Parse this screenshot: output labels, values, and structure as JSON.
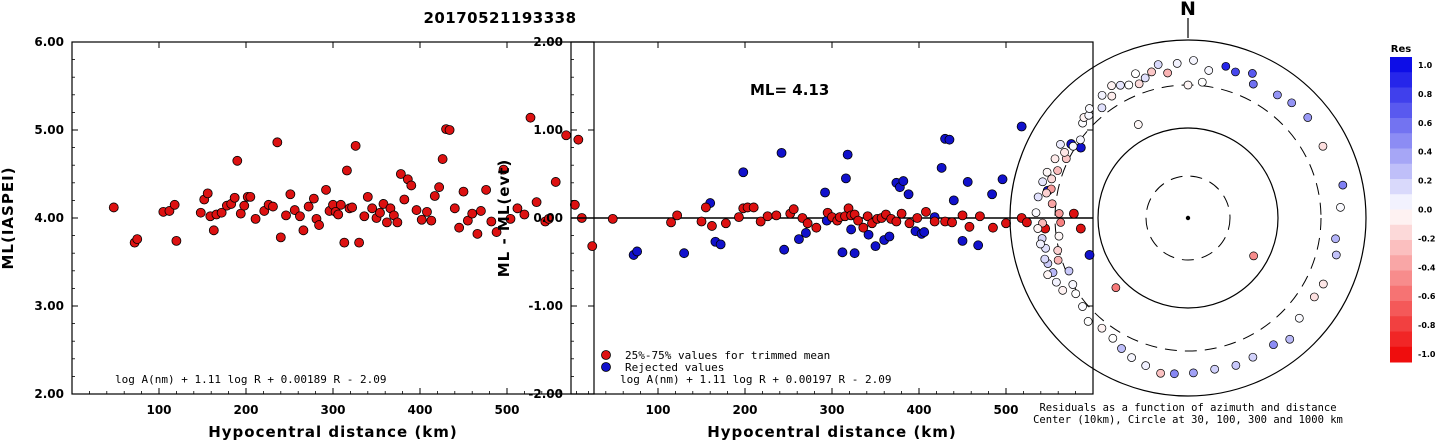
{
  "title": "20170521193338",
  "chart_data": [
    {
      "type": "scatter",
      "xlabel": "Hypocentral distance (km)",
      "ylabel": "ML(IASPEI)",
      "xlim": [
        0,
        600
      ],
      "ylim": [
        2.0,
        6.0
      ],
      "xticks": [
        100,
        200,
        300,
        400,
        500
      ],
      "yticks": [
        "2.00",
        "3.00",
        "4.00",
        "5.00",
        "6.00"
      ],
      "formula": "log A(nm) + 1.11 log R + 0.00189 R - 2.09",
      "point_color": "#dd1111",
      "points": [
        [
          48,
          4.12
        ],
        [
          72,
          3.72
        ],
        [
          75,
          3.76
        ],
        [
          105,
          4.07
        ],
        [
          112,
          4.08
        ],
        [
          118,
          4.15
        ],
        [
          120,
          3.74
        ],
        [
          148,
          4.06
        ],
        [
          152,
          4.21
        ],
        [
          156,
          4.28
        ],
        [
          159,
          4.02
        ],
        [
          163,
          3.86
        ],
        [
          166,
          4.04
        ],
        [
          172,
          4.06
        ],
        [
          178,
          4.14
        ],
        [
          183,
          4.16
        ],
        [
          187,
          4.23
        ],
        [
          190,
          4.65
        ],
        [
          194,
          4.05
        ],
        [
          198,
          4.14
        ],
        [
          202,
          4.24
        ],
        [
          205,
          4.24
        ],
        [
          211,
          3.99
        ],
        [
          221,
          4.08
        ],
        [
          226,
          4.15
        ],
        [
          231,
          4.13
        ],
        [
          236,
          4.86
        ],
        [
          240,
          3.78
        ],
        [
          246,
          4.03
        ],
        [
          251,
          4.27
        ],
        [
          256,
          4.09
        ],
        [
          262,
          4.02
        ],
        [
          266,
          3.86
        ],
        [
          272,
          4.13
        ],
        [
          278,
          4.22
        ],
        [
          281,
          3.99
        ],
        [
          284,
          3.92
        ],
        [
          292,
          4.32
        ],
        [
          296,
          4.08
        ],
        [
          300,
          4.15
        ],
        [
          303,
          4.07
        ],
        [
          306,
          4.04
        ],
        [
          309,
          4.15
        ],
        [
          313,
          3.72
        ],
        [
          316,
          4.54
        ],
        [
          319,
          4.11
        ],
        [
          322,
          4.12
        ],
        [
          326,
          4.82
        ],
        [
          330,
          3.72
        ],
        [
          336,
          4.02
        ],
        [
          340,
          4.24
        ],
        [
          345,
          4.11
        ],
        [
          350,
          4.0
        ],
        [
          354,
          4.06
        ],
        [
          358,
          4.16
        ],
        [
          362,
          3.95
        ],
        [
          366,
          4.11
        ],
        [
          370,
          4.03
        ],
        [
          374,
          3.95
        ],
        [
          378,
          4.5
        ],
        [
          382,
          4.21
        ],
        [
          386,
          4.44
        ],
        [
          390,
          4.37
        ],
        [
          396,
          4.09
        ],
        [
          402,
          3.98
        ],
        [
          408,
          4.07
        ],
        [
          413,
          3.97
        ],
        [
          417,
          4.25
        ],
        [
          422,
          4.35
        ],
        [
          426,
          4.67
        ],
        [
          430,
          5.01
        ],
        [
          434,
          5.0
        ],
        [
          440,
          4.11
        ],
        [
          445,
          3.89
        ],
        [
          450,
          4.3
        ],
        [
          455,
          3.97
        ],
        [
          460,
          4.05
        ],
        [
          466,
          3.82
        ],
        [
          470,
          4.08
        ],
        [
          476,
          4.32
        ],
        [
          482,
          3.96
        ],
        [
          488,
          3.84
        ],
        [
          496,
          4.55
        ],
        [
          504,
          3.99
        ],
        [
          512,
          4.11
        ],
        [
          520,
          4.04
        ],
        [
          527,
          5.14
        ],
        [
          534,
          4.18
        ],
        [
          544,
          3.96
        ],
        [
          548,
          3.99
        ],
        [
          556,
          4.41
        ],
        [
          568,
          4.94
        ],
        [
          578,
          4.15
        ],
        [
          582,
          4.89
        ],
        [
          586,
          4.0
        ],
        [
          598,
          3.68
        ]
      ]
    },
    {
      "type": "scatter",
      "xlabel": "Hypocentral distance (km)",
      "ylabel": "ML - ML(evt)",
      "xlim": [
        0,
        600
      ],
      "ylim": [
        -2.0,
        2.0
      ],
      "xticks": [
        100,
        200,
        300,
        400,
        500
      ],
      "yticks": [
        "-2.00",
        "-1.00",
        "0.00",
        "1.00",
        "2.00"
      ],
      "annotation": "ML= 4.13",
      "formula": "log A(nm) + 1.11 log R + 0.00197 R - 2.09",
      "legend": [
        {
          "label": "25%-75% values for trimmed mean",
          "color": "#dd1111"
        },
        {
          "label": "Rejected values",
          "color": "#1111cc"
        }
      ],
      "mean_line": 0.0,
      "points_trimmed": [
        [
          48,
          -0.01
        ],
        [
          115,
          -0.05
        ],
        [
          122,
          0.03
        ],
        [
          150,
          -0.04
        ],
        [
          155,
          0.12
        ],
        [
          162,
          -0.09
        ],
        [
          178,
          -0.06
        ],
        [
          193,
          0.01
        ],
        [
          198,
          0.11
        ],
        [
          203,
          0.12
        ],
        [
          210,
          0.12
        ],
        [
          218,
          -0.04
        ],
        [
          226,
          0.02
        ],
        [
          236,
          0.03
        ],
        [
          252,
          0.05
        ],
        [
          256,
          0.1
        ],
        [
          266,
          0.0
        ],
        [
          272,
          -0.06
        ],
        [
          282,
          -0.11
        ],
        [
          295,
          0.06
        ],
        [
          300,
          0.01
        ],
        [
          306,
          -0.03
        ],
        [
          309,
          0.01
        ],
        [
          315,
          0.02
        ],
        [
          319,
          0.11
        ],
        [
          322,
          0.03
        ],
        [
          326,
          0.04
        ],
        [
          330,
          -0.03
        ],
        [
          336,
          -0.11
        ],
        [
          341,
          0.02
        ],
        [
          346,
          -0.06
        ],
        [
          352,
          -0.01
        ],
        [
          357,
          0.0
        ],
        [
          362,
          0.04
        ],
        [
          368,
          -0.01
        ],
        [
          374,
          -0.04
        ],
        [
          380,
          0.05
        ],
        [
          389,
          -0.06
        ],
        [
          398,
          0.0
        ],
        [
          408,
          0.07
        ],
        [
          418,
          -0.04
        ],
        [
          430,
          -0.04
        ],
        [
          438,
          -0.05
        ],
        [
          450,
          0.03
        ],
        [
          458,
          -0.1
        ],
        [
          470,
          0.02
        ],
        [
          485,
          -0.11
        ],
        [
          500,
          -0.06
        ],
        [
          518,
          0.0
        ],
        [
          524,
          -0.05
        ],
        [
          545,
          -0.12
        ],
        [
          578,
          0.05
        ],
        [
          586,
          -0.12
        ]
      ],
      "points_rejected": [
        [
          72,
          -0.42
        ],
        [
          76,
          -0.38
        ],
        [
          130,
          -0.4
        ],
        [
          160,
          0.17
        ],
        [
          166,
          -0.27
        ],
        [
          172,
          -0.3
        ],
        [
          198,
          0.52
        ],
        [
          242,
          0.74
        ],
        [
          245,
          -0.36
        ],
        [
          262,
          -0.24
        ],
        [
          270,
          -0.17
        ],
        [
          292,
          0.29
        ],
        [
          294,
          -0.03
        ],
        [
          312,
          -0.39
        ],
        [
          316,
          0.45
        ],
        [
          318,
          0.72
        ],
        [
          322,
          -0.13
        ],
        [
          326,
          -0.4
        ],
        [
          342,
          -0.19
        ],
        [
          350,
          -0.32
        ],
        [
          360,
          -0.25
        ],
        [
          366,
          -0.21
        ],
        [
          374,
          0.4
        ],
        [
          378,
          0.35
        ],
        [
          382,
          0.42
        ],
        [
          388,
          0.27
        ],
        [
          396,
          -0.15
        ],
        [
          403,
          -0.18
        ],
        [
          406,
          -0.16
        ],
        [
          418,
          0.01
        ],
        [
          426,
          0.57
        ],
        [
          430,
          0.9
        ],
        [
          435,
          0.89
        ],
        [
          440,
          0.2
        ],
        [
          450,
          -0.26
        ],
        [
          456,
          0.41
        ],
        [
          468,
          -0.31
        ],
        [
          484,
          0.27
        ],
        [
          496,
          0.44
        ],
        [
          518,
          1.04
        ],
        [
          548,
          0.31
        ],
        [
          575,
          0.84
        ],
        [
          586,
          0.8
        ],
        [
          596,
          -0.42
        ]
      ]
    },
    {
      "type": "scatter",
      "subtype": "polar",
      "north_label": "N",
      "rings_km": [
        30,
        100,
        300,
        1000
      ],
      "caption_line1": "Residuals as a function of azimuth and distance",
      "caption_line2": "Center (10km), Circle at 30, 100, 300 and 1000 km",
      "colorbar_title": "Res",
      "colorbar_ticks": [
        "1.0",
        "0.8",
        "0.6",
        "0.4",
        "0.2",
        "0.0",
        "-0.2",
        "-0.4",
        "-0.6",
        "-0.8",
        "-1.0"
      ],
      "colorbar_range": [
        -1.0,
        1.0
      ],
      "points_azimuth_deg_distance_km_residual": [
        [
          236,
          320,
          0.0
        ],
        [
          312,
          380,
          0.01
        ],
        [
          314,
          410,
          -0.05
        ],
        [
          316,
          390,
          0.03
        ],
        [
          318,
          440,
          0.02
        ],
        [
          322,
          360,
          0.12
        ],
        [
          325,
          470,
          0.05
        ],
        [
          328,
          400,
          -0.07
        ],
        [
          330,
          510,
          -0.05
        ],
        [
          333,
          460,
          0.1
        ],
        [
          336,
          420,
          0.0
        ],
        [
          340,
          390,
          -0.14
        ],
        [
          340,
          520,
          0.0
        ],
        [
          343,
          430,
          0.12
        ],
        [
          346,
          480,
          -0.22
        ],
        [
          349,
          560,
          0.15
        ],
        [
          352,
          430,
          -0.3
        ],
        [
          356,
          540,
          0.05
        ],
        [
          0,
          300,
          -0.04
        ],
        [
          2,
          580,
          0.04
        ],
        [
          8,
          460,
          0.03
        ],
        [
          6,
          330,
          0.0
        ],
        [
          14,
          560,
          0.85
        ],
        [
          18,
          520,
          0.72
        ],
        [
          24,
          590,
          0.65
        ],
        [
          26,
          460,
          0.56
        ],
        [
          36,
          500,
          0.42
        ],
        [
          42,
          540,
          0.42
        ],
        [
          50,
          560,
          0.4
        ],
        [
          62,
          510,
          -0.13
        ],
        [
          78,
          590,
          0.5
        ],
        [
          86,
          510,
          0.02
        ],
        [
          98,
          460,
          0.3
        ],
        [
          104,
          510,
          0.24
        ],
        [
          116,
          480,
          -0.1
        ],
        [
          122,
          460,
          -0.12
        ],
        [
          132,
          470,
          0.02
        ],
        [
          140,
          590,
          0.27
        ],
        [
          146,
          510,
          0.45
        ],
        [
          155,
          520,
          0.18
        ],
        [
          162,
          540,
          0.22
        ],
        [
          170,
          520,
          0.18
        ],
        [
          178,
          540,
          0.37
        ],
        [
          185,
          560,
          0.47
        ],
        [
          190,
          580,
          -0.24
        ],
        [
          196,
          520,
          0.06
        ],
        [
          202,
          480,
          0.04
        ],
        [
          207,
          430,
          0.26
        ],
        [
          212,
          380,
          0.0
        ],
        [
          218,
          360,
          -0.05
        ],
        [
          224,
          400,
          0.0
        ],
        [
          230,
          340,
          0.02
        ],
        [
          240,
          300,
          0.03
        ],
        [
          246,
          280,
          0.21
        ],
        [
          252,
          330,
          -0.3
        ],
        [
          256,
          310,
          -0.18
        ],
        [
          262,
          280,
          -0.03
        ],
        [
          268,
          260,
          -0.5
        ],
        [
          272,
          270,
          -0.4
        ],
        [
          276,
          330,
          -0.35
        ],
        [
          282,
          360,
          -0.4
        ],
        [
          290,
          350,
          -0.27
        ],
        [
          296,
          320,
          -0.22
        ],
        [
          302,
          320,
          0.02
        ],
        [
          306,
          300,
          0.04
        ],
        [
          298,
          360,
          -0.1
        ],
        [
          286,
          380,
          -0.15
        ],
        [
          280,
          400,
          -0.18
        ],
        [
          268,
          420,
          -0.27
        ],
        [
          262,
          440,
          0.16
        ],
        [
          258,
          420,
          0.12
        ],
        [
          252,
          440,
          0.2
        ],
        [
          248,
          420,
          0.28
        ],
        [
          244,
          430,
          0.05
        ],
        [
          240,
          410,
          -0.05
        ],
        [
          300,
          440,
          0.08
        ],
        [
          294,
          420,
          -0.08
        ],
        [
          288,
          450,
          -0.03
        ],
        [
          284,
          470,
          0.1
        ],
        [
          278,
          490,
          0.12
        ],
        [
          272,
          500,
          0.02
        ],
        [
          266,
          480,
          -0.04
        ],
        [
          260,
          470,
          0.06
        ],
        [
          254,
          460,
          0.15
        ],
        [
          248,
          490,
          -0.04
        ],
        [
          332,
          150,
          -0.03
        ],
        [
          120,
          70,
          -0.45
        ],
        [
          226,
          130,
          -0.52
        ]
      ]
    }
  ]
}
